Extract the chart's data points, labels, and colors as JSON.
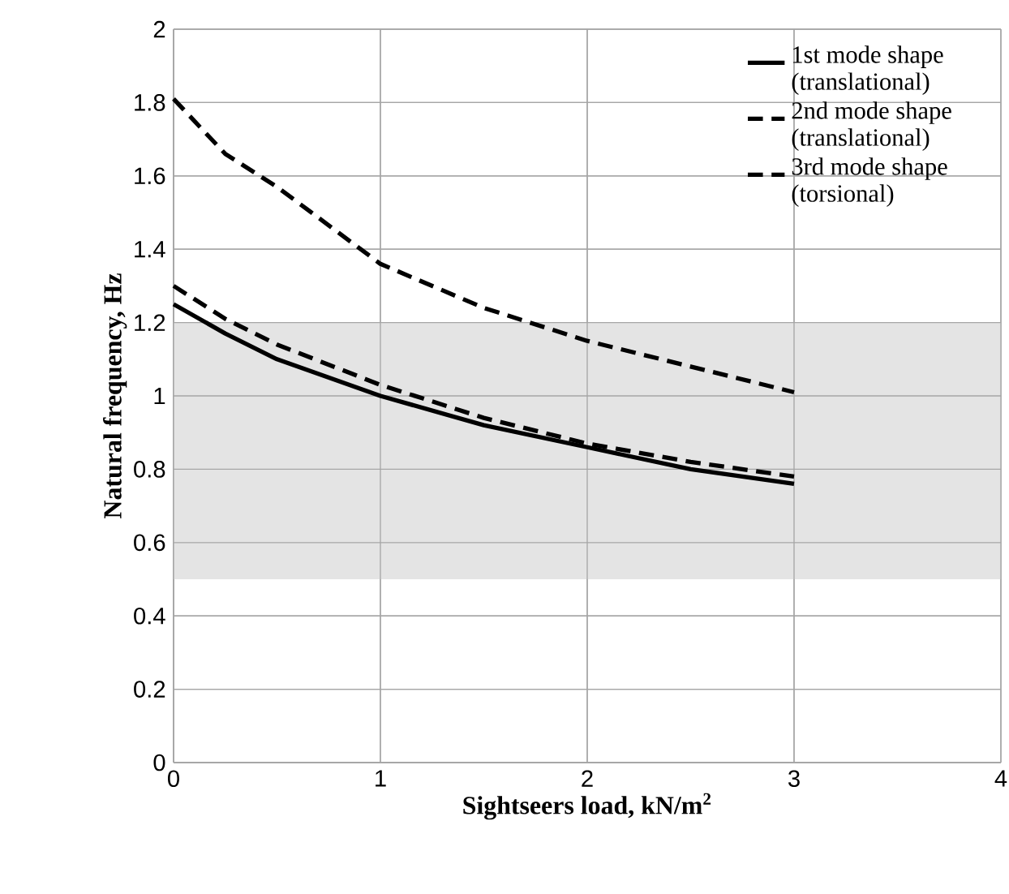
{
  "chart_data": {
    "type": "line",
    "xlabel": "Sightseers load, kN/m$^{2}$",
    "ylabel": "Natural frequency, Hz",
    "xlim": [
      0,
      4
    ],
    "xticks": [
      0,
      1,
      2,
      3,
      4
    ],
    "ylim": [
      0,
      2
    ],
    "yticks": [
      0,
      0.2,
      0.4,
      0.6,
      0.8,
      1,
      1.2,
      1.4,
      1.6,
      1.8,
      2
    ],
    "grid": true,
    "legend": "top right",
    "bands": [
      {
        "axis": "y",
        "from": 0.5,
        "to": 1.2,
        "color": "#e4e4e4"
      }
    ],
    "series": [
      {
        "name": "1st mode shape (translational)",
        "color": "#000000",
        "line_style": "solid",
        "x": [
          0,
          0.25,
          0.5,
          1,
          1.5,
          2,
          2.5,
          3
        ],
        "values": [
          1.25,
          1.17,
          1.1,
          1.0,
          0.92,
          0.86,
          0.8,
          0.76
        ]
      },
      {
        "name": "2nd mode shape (translational)",
        "color": "#000000",
        "line_style": "dashed",
        "x": [
          0,
          0.25,
          0.5,
          1,
          1.5,
          2,
          2.5,
          3
        ],
        "values": [
          1.3,
          1.21,
          1.14,
          1.03,
          0.94,
          0.87,
          0.82,
          0.78
        ]
      },
      {
        "name": "3rd mode shape (torsional)",
        "color": "#000000",
        "line_style": "dashed",
        "x": [
          0,
          0.25,
          0.5,
          1,
          1.5,
          2,
          2.5,
          3
        ],
        "values": [
          1.81,
          1.66,
          1.57,
          1.36,
          1.24,
          1.15,
          1.08,
          1.01
        ]
      }
    ]
  }
}
